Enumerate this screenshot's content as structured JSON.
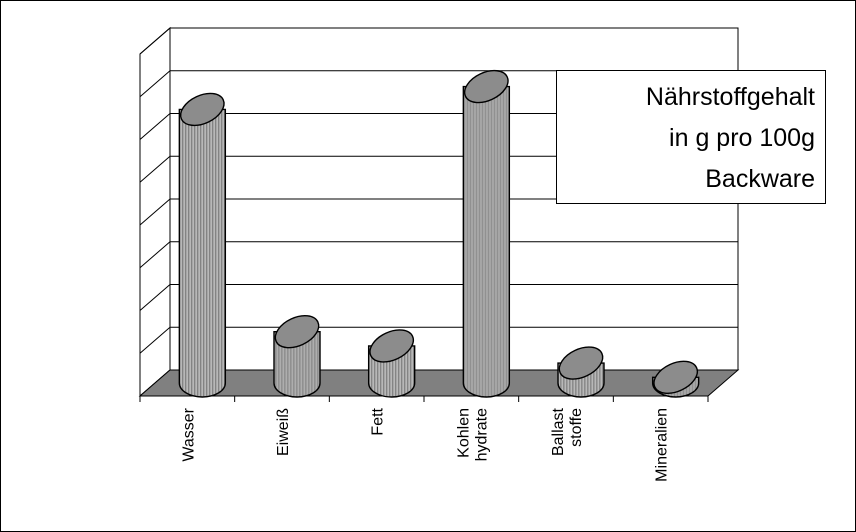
{
  "chart_data": {
    "type": "bar",
    "style": "3d-cylinder",
    "title_lines": [
      "Nährstoffgehalt",
      "in g pro 100g",
      "Backware"
    ],
    "categories": [
      [
        "Wasser"
      ],
      [
        "Eiweiß"
      ],
      [
        "Fett"
      ],
      [
        "Kohlen",
        "hydrate"
      ],
      [
        "Ballast",
        "stoffe"
      ],
      [
        "Mineralien"
      ]
    ],
    "values": [
      48,
      9,
      6.5,
      52,
      3.5,
      1
    ],
    "ylim": [
      0,
      60
    ],
    "y_tick_count": 9,
    "grid": true,
    "title_position": "top-right",
    "colors": {
      "bar": "#a6a6a6",
      "bar_top": "#8c8c8c",
      "floor": "#808080",
      "wall": "#ffffff",
      "grid": "#000000"
    }
  }
}
